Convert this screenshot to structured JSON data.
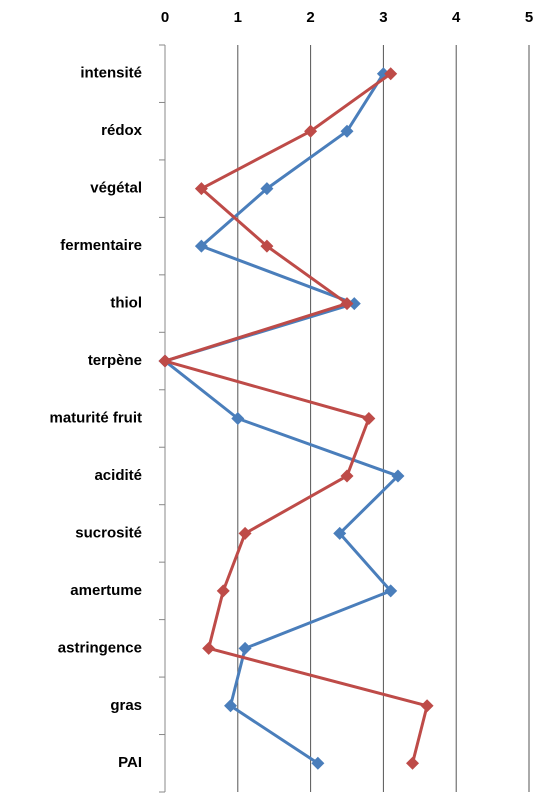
{
  "chart_data": {
    "type": "line",
    "orientation": "horizontal",
    "categories": [
      "intensité",
      "rédox",
      "végétal",
      "fermentaire",
      "thiol",
      "terpène",
      "maturité fruit",
      "acidité",
      "sucrosité",
      "amertume",
      "astringence",
      "gras",
      "PAI"
    ],
    "series": [
      {
        "color": "#4a7ebb",
        "values": [
          3.0,
          2.5,
          1.4,
          0.5,
          2.6,
          0,
          1.0,
          3.2,
          2.4,
          3.1,
          1.1,
          0.9,
          2.1
        ]
      },
      {
        "color": "#be4b48",
        "values": [
          3.1,
          2.0,
          0.5,
          1.4,
          2.5,
          0,
          2.8,
          2.5,
          1.1,
          0.8,
          0.6,
          3.6,
          3.4
        ]
      }
    ],
    "xlim": [
      0,
      5
    ],
    "xticks": [
      0,
      1,
      2,
      3,
      4,
      5
    ],
    "grid": true
  }
}
